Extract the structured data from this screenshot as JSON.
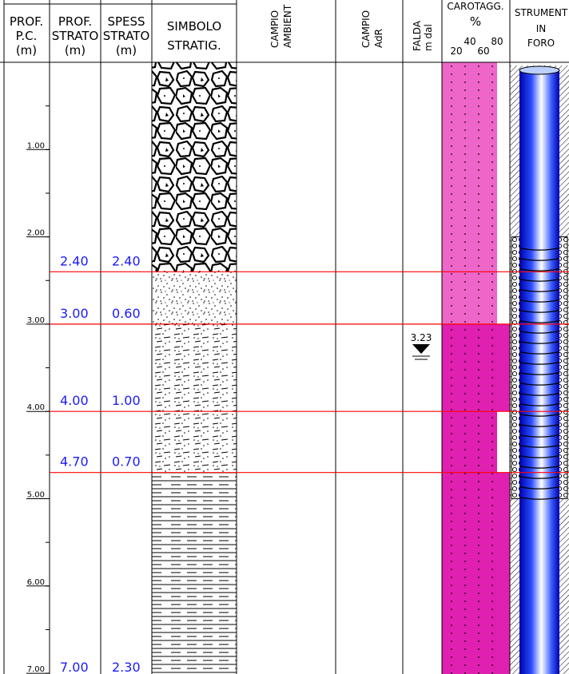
{
  "header": {
    "prof_pc": [
      "PROF.",
      "P.C.",
      "(m)"
    ],
    "prof_strato": [
      "PROF.",
      "STRATO",
      "(m)"
    ],
    "spess_strato": [
      "SPESS",
      "STRATO",
      "(m)"
    ],
    "simbolo": [
      "SIMBOLO",
      "STRATIG."
    ],
    "campio_ambient": [
      "CAMPIO",
      "AMBIENT"
    ],
    "campio_adr": [
      "CAMPIO",
      "AdR"
    ],
    "falda": [
      "FALDA",
      "m dal"
    ],
    "carotaggio": [
      "CAROTAGG.",
      "%"
    ],
    "carotaggio_scale": [
      "20",
      "40",
      "60",
      "80"
    ],
    "strumenti": [
      "STRUMENT",
      "IN",
      "FORO"
    ]
  },
  "depth_scale": [
    "1.00",
    "2.00",
    "3.00",
    "4.00",
    "5.00",
    "6.00",
    "7.00"
  ],
  "layers": [
    {
      "prof": "2.40",
      "spess": "2.40"
    },
    {
      "prof": "3.00",
      "spess": "0.60"
    },
    {
      "prof": "4.00",
      "spess": "1.00"
    },
    {
      "prof": "4.70",
      "spess": "0.70"
    },
    {
      "prof": "7.00",
      "spess": "2.30"
    }
  ],
  "falda_level": "3.23"
}
